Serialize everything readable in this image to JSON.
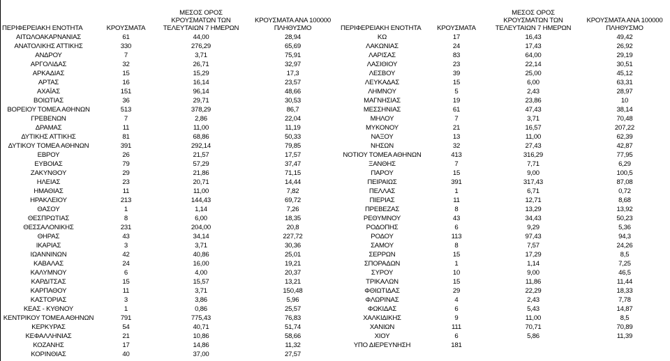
{
  "tables": [
    {
      "columns": [
        "ΠΕΡΙΦΕΡΕΙΑΚΗ ΕΝΟΤΗΤΑ",
        "ΚΡΟΥΣΜΑΤΑ",
        "ΜΕΣΟΣ ΟΡΟΣ ΚΡΟΥΣΜΑΤΩΝ ΤΩΝ ΤΕΛΕΥΤΑΙΩΝ 7 ΗΜΕΡΩΝ",
        "ΚΡΟΥΣΜΑΤΑ ΑΝΑ 100000 ΠΛΗΘΥΣΜΟ"
      ],
      "rows": [
        [
          "ΑΙΤΩΛΟΑΚΑΡΝΑΝΙΑΣ",
          "61",
          "44,00",
          "28,94"
        ],
        [
          "ΑΝΑΤΟΛΙΚΗΣ ΑΤΤΙΚΗΣ",
          "330",
          "276,29",
          "65,69"
        ],
        [
          "ΑΝΔΡΟΥ",
          "7",
          "3,71",
          "75,91"
        ],
        [
          "ΑΡΓΟΛΙΔΑΣ",
          "32",
          "26,71",
          "32,97"
        ],
        [
          "ΑΡΚΑΔΙΑΣ",
          "15",
          "15,29",
          "17,3"
        ],
        [
          "ΑΡΤΑΣ",
          "16",
          "16,14",
          "23,57"
        ],
        [
          "ΑΧΑΪΑΣ",
          "151",
          "96,14",
          "48,66"
        ],
        [
          "ΒΟΙΩΤΙΑΣ",
          "36",
          "29,71",
          "30,53"
        ],
        [
          "ΒΟΡΕΙΟΥ ΤΟΜΕΑ ΑΘΗΝΩΝ",
          "513",
          "378,29",
          "86,7"
        ],
        [
          "ΓΡΕΒΕΝΩΝ",
          "7",
          "2,86",
          "22,04"
        ],
        [
          "ΔΡΑΜΑΣ",
          "11",
          "11,00",
          "11,19"
        ],
        [
          "ΔΥΤΙΚΗΣ ΑΤΤΙΚΗΣ",
          "81",
          "68,86",
          "50,33"
        ],
        [
          "ΔΥΤΙΚΟΥ ΤΟΜΕΑ ΑΘΗΝΩΝ",
          "391",
          "292,14",
          "79,85"
        ],
        [
          "ΕΒΡΟΥ",
          "26",
          "21,57",
          "17,57"
        ],
        [
          "ΕΥΒΟΙΑΣ",
          "79",
          "57,29",
          "37,47"
        ],
        [
          "ΖΑΚΥΝΘΟΥ",
          "29",
          "21,86",
          "71,15"
        ],
        [
          "ΗΛΕΙΑΣ",
          "23",
          "20,71",
          "14,44"
        ],
        [
          "ΗΜΑΘΙΑΣ",
          "11",
          "11,00",
          "7,82"
        ],
        [
          "ΗΡΑΚΛΕΙΟΥ",
          "213",
          "144,43",
          "69,72"
        ],
        [
          "ΘΑΣΟΥ",
          "1",
          "1,14",
          "7,26"
        ],
        [
          "ΘΕΣΠΡΩΤΙΑΣ",
          "8",
          "6,00",
          "18,35"
        ],
        [
          "ΘΕΣΣΑΛΟΝΙΚΗΣ",
          "231",
          "204,00",
          "20,8"
        ],
        [
          "ΘΗΡΑΣ",
          "43",
          "34,14",
          "227,72"
        ],
        [
          "ΙΚΑΡΙΑΣ",
          "3",
          "3,71",
          "30,36"
        ],
        [
          "ΙΩΑΝΝΙΝΩΝ",
          "42",
          "40,86",
          "25,01"
        ],
        [
          "ΚΑΒΑΛΑΣ",
          "24",
          "16,00",
          "19,21"
        ],
        [
          "ΚΑΛΥΜΝΟΥ",
          "6",
          "4,00",
          "20,37"
        ],
        [
          "ΚΑΡΔΙΤΣΑΣ",
          "15",
          "15,57",
          "13,21"
        ],
        [
          "ΚΑΡΠΑΘΟΥ",
          "11",
          "3,71",
          "150,48"
        ],
        [
          "ΚΑΣΤΟΡΙΑΣ",
          "3",
          "3,86",
          "5,96"
        ],
        [
          "ΚΕΑΣ - ΚΥΘΝΟΥ",
          "1",
          "0,86",
          "25,57"
        ],
        [
          "ΚΕΝΤΡΙΚΟΥ ΤΟΜΕΑ ΑΘΗΝΩΝ",
          "791",
          "775,43",
          "76,83"
        ],
        [
          "ΚΕΡΚΥΡΑΣ",
          "54",
          "40,71",
          "51,74"
        ],
        [
          "ΚΕΦΑΛΛΗΝΙΑΣ",
          "21",
          "10,86",
          "58,66"
        ],
        [
          "ΚΟΖΑΝΗΣ",
          "17",
          "14,86",
          "11,32"
        ],
        [
          "ΚΟΡΙΝΘΙΑΣ",
          "40",
          "37,00",
          "27,57"
        ]
      ]
    },
    {
      "columns": [
        "ΠΕΡΙΦΕΡΕΙΑΚΗ ΕΝΟΤΗΤΑ",
        "ΚΡΟΥΣΜΑΤΑ",
        "ΜΕΣΟΣ ΟΡΟΣ ΚΡΟΥΣΜΑΤΩΝ ΤΩΝ ΤΕΛΕΥΤΑΙΩΝ 7 ΗΜΕΡΩΝ",
        "ΚΡΟΥΣΜΑΤΑ ΑΝΑ 100000 ΠΛΗΘΥΣΜΟ"
      ],
      "rows": [
        [
          "ΚΩ",
          "17",
          "16,43",
          "49,42"
        ],
        [
          "ΛΑΚΩΝΙΑΣ",
          "24",
          "17,43",
          "26,92"
        ],
        [
          "ΛΑΡΙΣΑΣ",
          "83",
          "64,00",
          "29,19"
        ],
        [
          "ΛΑΣΙΘΙΟΥ",
          "23",
          "22,14",
          "30,51"
        ],
        [
          "ΛΕΣΒΟΥ",
          "39",
          "25,00",
          "45,12"
        ],
        [
          "ΛΕΥΚΑΔΑΣ",
          "15",
          "6,00",
          "63,31"
        ],
        [
          "ΛΗΜΝΟΥ",
          "5",
          "2,43",
          "28,97"
        ],
        [
          "ΜΑΓΝΗΣΙΑΣ",
          "19",
          "23,86",
          "10"
        ],
        [
          "ΜΕΣΣΗΝΙΑΣ",
          "61",
          "47,43",
          "38,14"
        ],
        [
          "ΜΗΛΟΥ",
          "7",
          "3,71",
          "70,48"
        ],
        [
          "ΜΥΚΟΝΟΥ",
          "21",
          "16,57",
          "207,22"
        ],
        [
          "ΝΑΞΟΥ",
          "13",
          "11,00",
          "62,39"
        ],
        [
          "ΝΗΣΩΝ",
          "32",
          "27,43",
          "42,87"
        ],
        [
          "ΝΟΤΙΟΥ ΤΟΜΕΑ ΑΘΗΝΩΝ",
          "413",
          "316,29",
          "77,95"
        ],
        [
          "ΞΑΝΘΗΣ",
          "7",
          "7,71",
          "6,29"
        ],
        [
          "ΠΑΡΟΥ",
          "15",
          "9,00",
          "100,5"
        ],
        [
          "ΠΕΙΡΑΙΩΣ",
          "391",
          "317,43",
          "87,08"
        ],
        [
          "ΠΕΛΛΑΣ",
          "1",
          "6,71",
          "0,72"
        ],
        [
          "ΠΙΕΡΙΑΣ",
          "11",
          "12,71",
          "8,68"
        ],
        [
          "ΠΡΕΒΕΖΑΣ",
          "8",
          "13,29",
          "13,92"
        ],
        [
          "ΡΕΘΥΜΝΟΥ",
          "43",
          "34,43",
          "50,23"
        ],
        [
          "ΡΟΔΟΠΗΣ",
          "6",
          "9,29",
          "5,36"
        ],
        [
          "ΡΟΔΟΥ",
          "113",
          "97,43",
          "94,3"
        ],
        [
          "ΣΑΜΟΥ",
          "8",
          "7,57",
          "24,26"
        ],
        [
          "ΣΕΡΡΩΝ",
          "15",
          "17,29",
          "8,5"
        ],
        [
          "ΣΠΟΡΑΔΩΝ",
          "1",
          "1,14",
          "7,25"
        ],
        [
          "ΣΥΡΟΥ",
          "10",
          "9,00",
          "46,5"
        ],
        [
          "ΤΡΙΚΑΛΩΝ",
          "15",
          "11,86",
          "11,44"
        ],
        [
          "ΦΘΙΩΤΙΔΑΣ",
          "29",
          "22,29",
          "18,33"
        ],
        [
          "ΦΛΩΡΙΝΑΣ",
          "4",
          "2,43",
          "7,78"
        ],
        [
          "ΦΩΚΙΔΑΣ",
          "6",
          "5,43",
          "14,87"
        ],
        [
          "ΧΑΛΚΙΔΙΚΗΣ",
          "9",
          "11,00",
          "8,5"
        ],
        [
          "ΧΑΝΙΩΝ",
          "111",
          "70,71",
          "70,89"
        ],
        [
          "ΧΙΟΥ",
          "6",
          "5,86",
          "11,39"
        ],
        [
          "ΥΠΟ ΔΙΕΡΕΥΝΗΣΗ",
          "181"
        ]
      ]
    }
  ]
}
